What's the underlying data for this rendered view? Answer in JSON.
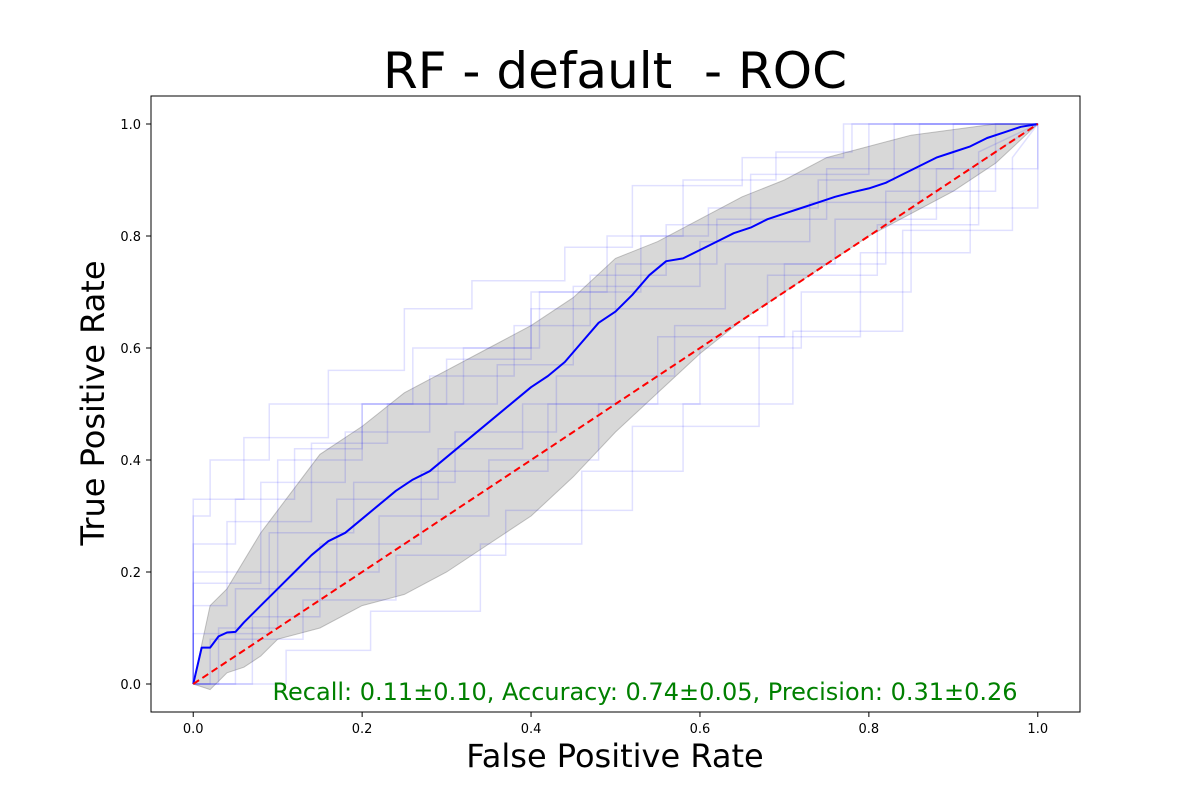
{
  "chart_data": {
    "type": "line",
    "title": "RF - default  - ROC",
    "xlabel": "False Positive Rate",
    "ylabel": "True Positive Rate",
    "xlim": [
      -0.05,
      1.05
    ],
    "ylim": [
      -0.05,
      1.05
    ],
    "x_ticks": [
      0.0,
      0.2,
      0.4,
      0.6,
      0.8,
      1.0
    ],
    "y_ticks": [
      0.0,
      0.2,
      0.4,
      0.6,
      0.8,
      1.0
    ],
    "x_tick_labels": [
      "0.0",
      "0.2",
      "0.4",
      "0.6",
      "0.8",
      "1.0"
    ],
    "y_tick_labels": [
      "0.0",
      "0.2",
      "0.4",
      "0.6",
      "0.8",
      "1.0"
    ],
    "grid": false,
    "annotation": "Recall: 0.11±0.10, Accuracy: 0.74±0.05, Precision: 0.31±0.26",
    "colors": {
      "mean_roc": "#0000ff",
      "fold_roc": "#0000ff",
      "confidence_band": "#bebebe",
      "chance_line": "#ff0000",
      "annotation": "#008000"
    },
    "mean_roc": {
      "x": [
        0.0,
        0.01,
        0.02,
        0.03,
        0.04,
        0.05,
        0.06,
        0.08,
        0.1,
        0.12,
        0.14,
        0.16,
        0.18,
        0.2,
        0.22,
        0.24,
        0.26,
        0.28,
        0.3,
        0.32,
        0.34,
        0.36,
        0.38,
        0.4,
        0.42,
        0.44,
        0.46,
        0.48,
        0.5,
        0.52,
        0.54,
        0.56,
        0.58,
        0.6,
        0.62,
        0.64,
        0.66,
        0.68,
        0.7,
        0.72,
        0.74,
        0.76,
        0.78,
        0.8,
        0.82,
        0.84,
        0.86,
        0.88,
        0.9,
        0.92,
        0.94,
        0.96,
        0.98,
        1.0
      ],
      "y": [
        0.0,
        0.065,
        0.065,
        0.085,
        0.092,
        0.093,
        0.11,
        0.14,
        0.17,
        0.2,
        0.23,
        0.255,
        0.27,
        0.295,
        0.32,
        0.345,
        0.365,
        0.38,
        0.405,
        0.43,
        0.455,
        0.48,
        0.505,
        0.53,
        0.55,
        0.575,
        0.61,
        0.645,
        0.665,
        0.695,
        0.73,
        0.755,
        0.76,
        0.775,
        0.79,
        0.805,
        0.815,
        0.83,
        0.84,
        0.85,
        0.86,
        0.87,
        0.878,
        0.885,
        0.895,
        0.91,
        0.925,
        0.94,
        0.95,
        0.96,
        0.975,
        0.985,
        0.995,
        1.0
      ]
    },
    "confidence_band": {
      "x": [
        0.0,
        0.02,
        0.04,
        0.06,
        0.08,
        0.1,
        0.15,
        0.2,
        0.25,
        0.3,
        0.35,
        0.4,
        0.45,
        0.5,
        0.55,
        0.6,
        0.65,
        0.7,
        0.75,
        0.8,
        0.85,
        0.9,
        0.95,
        1.0
      ],
      "upper": [
        0.0,
        0.14,
        0.17,
        0.22,
        0.27,
        0.31,
        0.41,
        0.46,
        0.52,
        0.56,
        0.6,
        0.64,
        0.69,
        0.76,
        0.79,
        0.83,
        0.87,
        0.9,
        0.94,
        0.96,
        0.98,
        0.99,
        1.0,
        1.0
      ],
      "lower": [
        0.0,
        -0.01,
        0.02,
        0.03,
        0.05,
        0.08,
        0.1,
        0.14,
        0.16,
        0.2,
        0.25,
        0.3,
        0.37,
        0.45,
        0.52,
        0.59,
        0.65,
        0.7,
        0.75,
        0.8,
        0.84,
        0.88,
        0.93,
        1.0
      ]
    },
    "chance_line": {
      "x": [
        0.0,
        1.0
      ],
      "y": [
        0.0,
        1.0
      ]
    },
    "fold_curves": [
      {
        "x": [
          0.0,
          0.0,
          0.05,
          0.05,
          0.12,
          0.12,
          0.2,
          0.2,
          0.3,
          0.3,
          0.4,
          0.4,
          0.5,
          0.5,
          0.62,
          0.62,
          0.75,
          0.75,
          0.9,
          0.9,
          1.0
        ],
        "y": [
          0.0,
          0.25,
          0.25,
          0.33,
          0.33,
          0.42,
          0.42,
          0.5,
          0.5,
          0.58,
          0.58,
          0.67,
          0.67,
          0.75,
          0.75,
          0.83,
          0.83,
          0.92,
          0.92,
          1.0,
          1.0
        ]
      },
      {
        "x": [
          0.0,
          0.03,
          0.03,
          0.1,
          0.1,
          0.22,
          0.22,
          0.35,
          0.35,
          0.48,
          0.48,
          0.6,
          0.6,
          0.72,
          0.72,
          0.85,
          0.85,
          1.0,
          1.0
        ],
        "y": [
          0.0,
          0.0,
          0.1,
          0.1,
          0.2,
          0.2,
          0.3,
          0.3,
          0.4,
          0.4,
          0.5,
          0.5,
          0.6,
          0.6,
          0.7,
          0.7,
          0.85,
          0.85,
          1.0
        ]
      },
      {
        "x": [
          0.0,
          0.0,
          0.08,
          0.08,
          0.18,
          0.18,
          0.28,
          0.28,
          0.38,
          0.38,
          0.47,
          0.47,
          0.56,
          0.56,
          0.66,
          0.66,
          0.8,
          0.8,
          1.0
        ],
        "y": [
          0.0,
          0.18,
          0.18,
          0.36,
          0.36,
          0.45,
          0.45,
          0.55,
          0.55,
          0.64,
          0.64,
          0.73,
          0.73,
          0.82,
          0.82,
          0.91,
          0.91,
          1.0,
          1.0
        ]
      },
      {
        "x": [
          0.0,
          0.07,
          0.07,
          0.15,
          0.15,
          0.27,
          0.27,
          0.42,
          0.42,
          0.55,
          0.55,
          0.7,
          0.7,
          0.82,
          0.82,
          0.95,
          0.95,
          1.0
        ],
        "y": [
          0.0,
          0.0,
          0.12,
          0.12,
          0.25,
          0.25,
          0.38,
          0.38,
          0.5,
          0.5,
          0.62,
          0.62,
          0.75,
          0.75,
          0.88,
          0.88,
          1.0,
          1.0
        ]
      },
      {
        "x": [
          0.0,
          0.0,
          0.06,
          0.06,
          0.16,
          0.16,
          0.25,
          0.25,
          0.33,
          0.33,
          0.44,
          0.44,
          0.52,
          0.52,
          0.65,
          0.65,
          0.77,
          0.77,
          1.0
        ],
        "y": [
          0.0,
          0.33,
          0.33,
          0.44,
          0.44,
          0.56,
          0.56,
          0.67,
          0.67,
          0.72,
          0.72,
          0.78,
          0.78,
          0.89,
          0.89,
          0.94,
          0.94,
          1.0,
          1.0
        ]
      },
      {
        "x": [
          0.0,
          0.02,
          0.02,
          0.13,
          0.13,
          0.24,
          0.24,
          0.37,
          0.37,
          0.52,
          0.52,
          0.67,
          0.67,
          0.79,
          0.79,
          0.92,
          0.92,
          1.0
        ],
        "y": [
          0.0,
          0.0,
          0.08,
          0.08,
          0.15,
          0.15,
          0.23,
          0.23,
          0.31,
          0.31,
          0.46,
          0.46,
          0.62,
          0.62,
          0.77,
          0.77,
          0.92,
          1.0
        ]
      },
      {
        "x": [
          0.0,
          0.0,
          0.1,
          0.1,
          0.2,
          0.2,
          0.32,
          0.32,
          0.41,
          0.41,
          0.53,
          0.53,
          0.58,
          0.58,
          0.69,
          0.69,
          0.78,
          0.78,
          1.0
        ],
        "y": [
          0.0,
          0.2,
          0.2,
          0.4,
          0.4,
          0.5,
          0.5,
          0.6,
          0.6,
          0.7,
          0.7,
          0.8,
          0.8,
          0.9,
          0.9,
          0.95,
          0.95,
          1.0,
          1.0
        ]
      },
      {
        "x": [
          0.0,
          0.11,
          0.11,
          0.21,
          0.21,
          0.34,
          0.34,
          0.46,
          0.46,
          0.58,
          0.58,
          0.71,
          0.71,
          0.84,
          0.84,
          0.97,
          0.97,
          1.0
        ],
        "y": [
          0.0,
          0.0,
          0.06,
          0.06,
          0.13,
          0.13,
          0.25,
          0.25,
          0.38,
          0.38,
          0.5,
          0.5,
          0.63,
          0.63,
          0.81,
          0.81,
          0.94,
          1.0
        ]
      },
      {
        "x": [
          0.0,
          0.0,
          0.04,
          0.04,
          0.14,
          0.14,
          0.23,
          0.23,
          0.36,
          0.36,
          0.45,
          0.45,
          0.6,
          0.6,
          0.73,
          0.73,
          0.86,
          0.86,
          1.0
        ],
        "y": [
          0.0,
          0.14,
          0.14,
          0.29,
          0.29,
          0.43,
          0.43,
          0.5,
          0.5,
          0.57,
          0.57,
          0.71,
          0.71,
          0.79,
          0.79,
          0.86,
          0.86,
          1.0,
          1.0
        ]
      },
      {
        "x": [
          0.0,
          0.05,
          0.05,
          0.17,
          0.17,
          0.29,
          0.29,
          0.39,
          0.39,
          0.5,
          0.5,
          0.63,
          0.63,
          0.76,
          0.76,
          0.88,
          0.88,
          1.0,
          1.0
        ],
        "y": [
          0.0,
          0.0,
          0.17,
          0.17,
          0.33,
          0.33,
          0.42,
          0.42,
          0.5,
          0.5,
          0.67,
          0.67,
          0.75,
          0.75,
          0.83,
          0.83,
          0.92,
          0.92,
          1.0
        ]
      },
      {
        "x": [
          0.0,
          0.0,
          0.09,
          0.09,
          0.19,
          0.19,
          0.31,
          0.31,
          0.43,
          0.43,
          0.57,
          0.57,
          0.68,
          0.68,
          0.81,
          0.81,
          0.93,
          0.93,
          1.0
        ],
        "y": [
          0.0,
          0.09,
          0.09,
          0.27,
          0.27,
          0.36,
          0.36,
          0.45,
          0.45,
          0.55,
          0.55,
          0.64,
          0.64,
          0.73,
          0.73,
          0.82,
          0.82,
          0.95,
          1.0
        ]
      },
      {
        "x": [
          0.0,
          0.0,
          0.02,
          0.02,
          0.09,
          0.09,
          0.26,
          0.26,
          0.4,
          0.4,
          0.49,
          0.49,
          0.61,
          0.61,
          0.74,
          0.74,
          0.83,
          0.83,
          1.0
        ],
        "y": [
          0.0,
          0.3,
          0.3,
          0.4,
          0.4,
          0.5,
          0.5,
          0.6,
          0.6,
          0.7,
          0.7,
          0.8,
          0.8,
          0.85,
          0.85,
          0.9,
          0.9,
          1.0,
          1.0
        ]
      }
    ]
  }
}
